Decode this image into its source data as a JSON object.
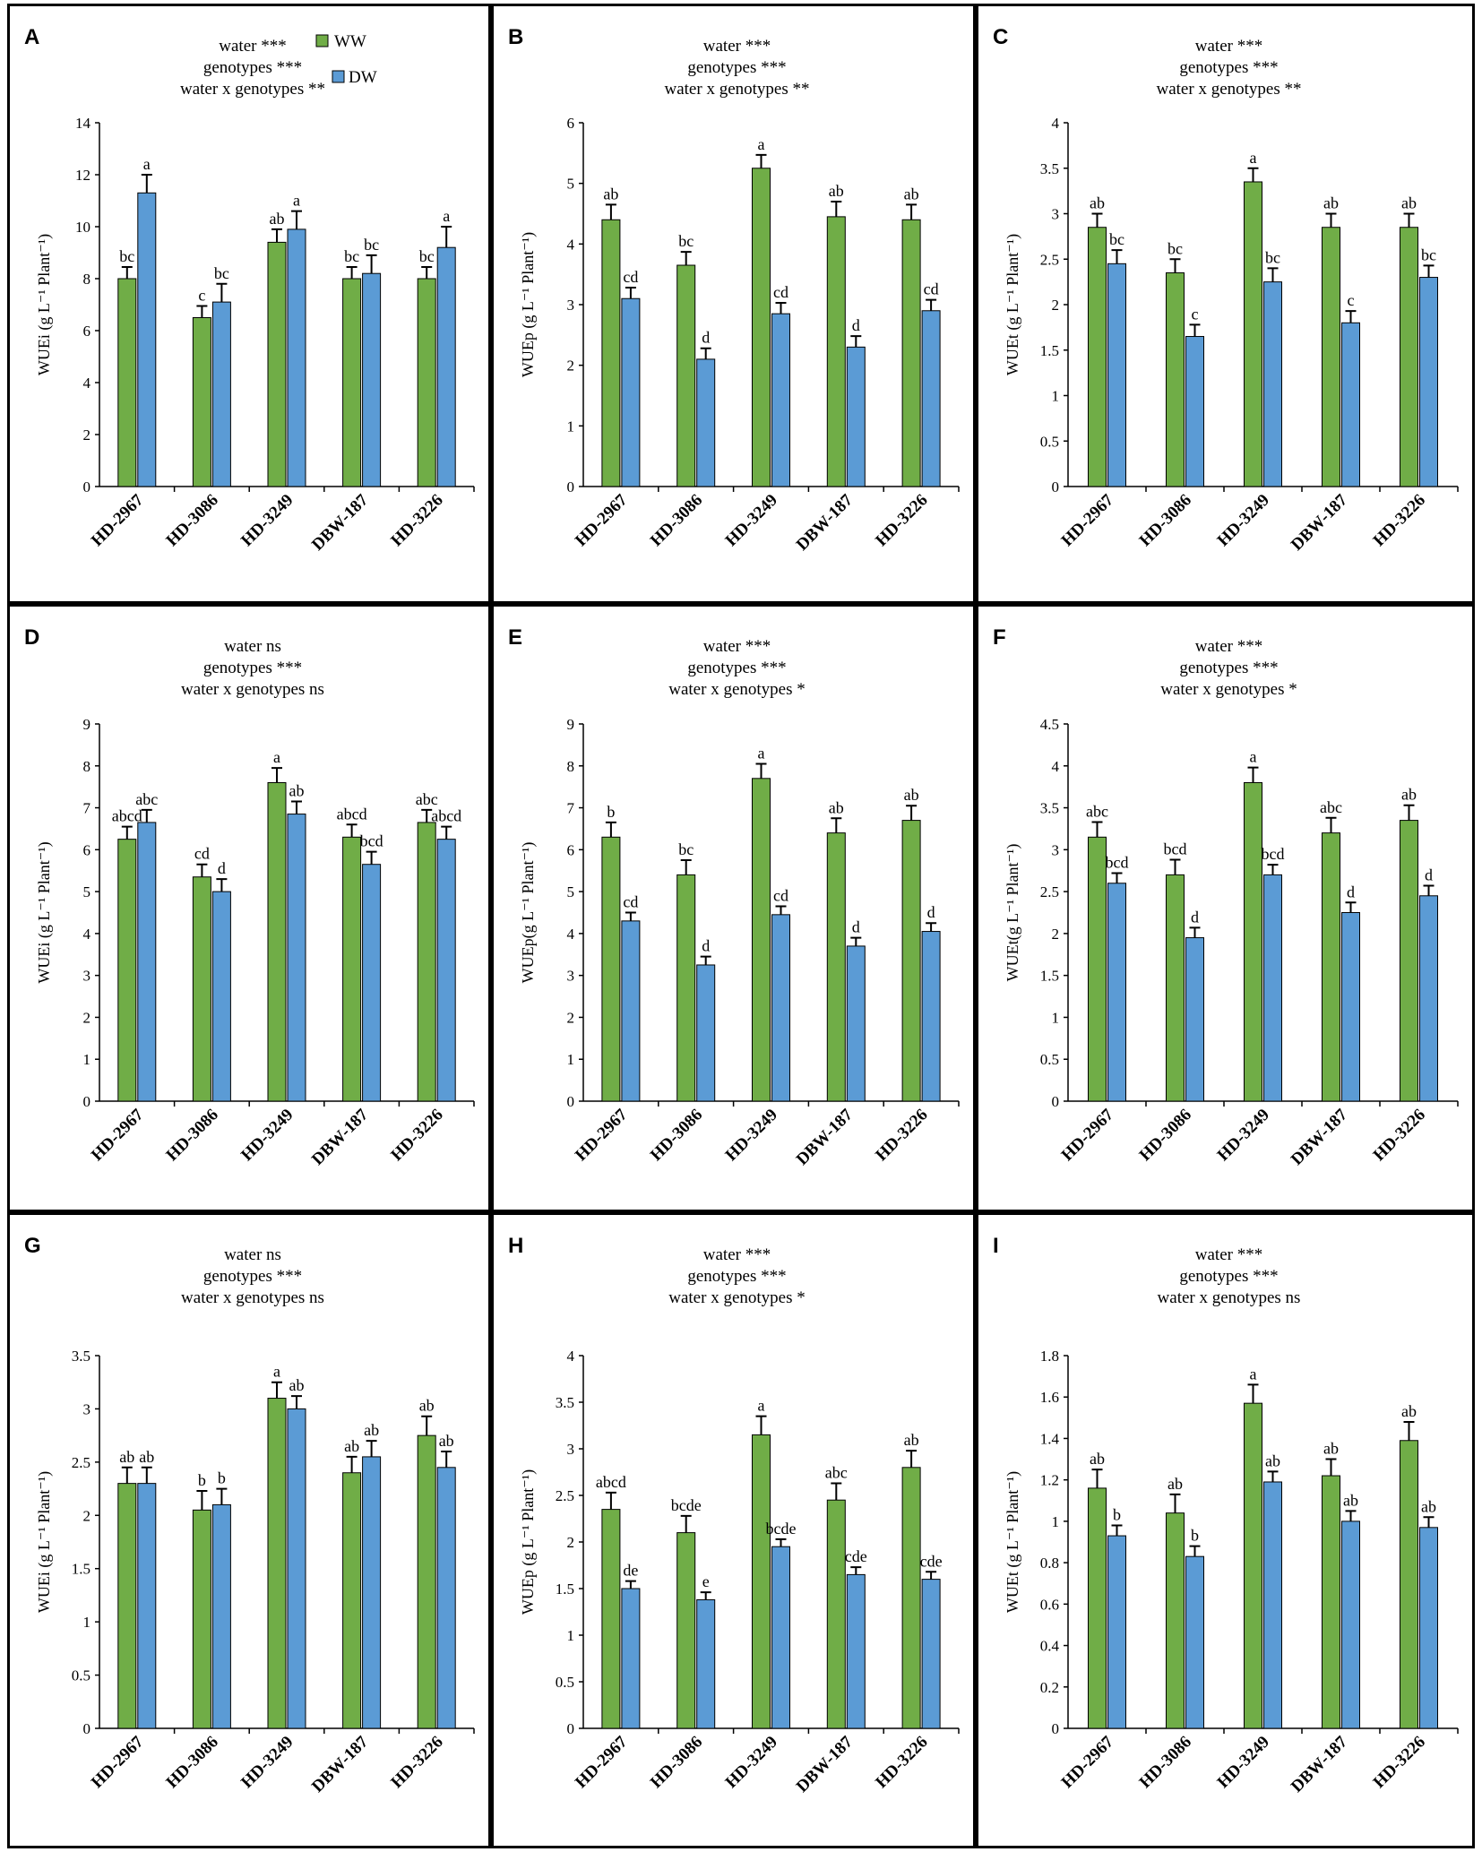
{
  "legend": {
    "ww_label": "WW",
    "dw_label": "DW",
    "ww_color": "#70ad47",
    "dw_color": "#5b9bd5"
  },
  "chart_data": [
    {
      "type": "bar",
      "panel": "A",
      "stats": [
        "water ***",
        "genotypes ***",
        "water x genotypes **"
      ],
      "ylabel": "WUEi (g L⁻¹ Plant⁻¹)",
      "ylim": [
        0,
        14
      ],
      "yticks": [
        0,
        2,
        4,
        6,
        8,
        10,
        12,
        14
      ],
      "categories": [
        "HD-2967",
        "HD-3086",
        "HD-3249",
        "DBW-187",
        "HD-3226"
      ],
      "series": [
        {
          "name": "WW",
          "values": [
            8.0,
            6.5,
            9.4,
            8.0,
            8.0
          ],
          "errors": [
            0.45,
            0.45,
            0.5,
            0.45,
            0.45
          ],
          "labels": [
            "bc",
            "c",
            "ab",
            "bc",
            "bc"
          ]
        },
        {
          "name": "DW",
          "values": [
            11.3,
            7.1,
            9.9,
            8.2,
            9.2
          ],
          "errors": [
            0.7,
            0.7,
            0.7,
            0.7,
            0.8
          ],
          "labels": [
            "a",
            "bc",
            "a",
            "bc",
            "a"
          ]
        }
      ]
    },
    {
      "type": "bar",
      "panel": "B",
      "stats": [
        "water ***",
        "genotypes ***",
        "water x genotypes **"
      ],
      "ylabel": "WUEp (g L⁻¹ Plant⁻¹)",
      "ylim": [
        0,
        6
      ],
      "yticks": [
        0,
        1,
        2,
        3,
        4,
        5,
        6
      ],
      "categories": [
        "HD-2967",
        "HD-3086",
        "HD-3249",
        "DBW-187",
        "HD-3226"
      ],
      "series": [
        {
          "name": "WW",
          "values": [
            4.4,
            3.65,
            5.25,
            4.45,
            4.4
          ],
          "errors": [
            0.25,
            0.22,
            0.22,
            0.25,
            0.25
          ],
          "labels": [
            "ab",
            "bc",
            "a",
            "ab",
            "ab"
          ]
        },
        {
          "name": "DW",
          "values": [
            3.1,
            2.1,
            2.85,
            2.3,
            2.9
          ],
          "errors": [
            0.18,
            0.18,
            0.18,
            0.18,
            0.18
          ],
          "labels": [
            "cd",
            "d",
            "cd",
            "d",
            "cd"
          ]
        }
      ]
    },
    {
      "type": "bar",
      "panel": "C",
      "stats": [
        "water ***",
        "genotypes ***",
        "water x genotypes **"
      ],
      "ylabel": "WUEt (g L⁻¹ Plant⁻¹)",
      "ylim": [
        0,
        4
      ],
      "yticks": [
        0,
        0.5,
        1,
        1.5,
        2,
        2.5,
        3,
        3.5,
        4
      ],
      "categories": [
        "HD-2967",
        "HD-3086",
        "HD-3249",
        "DBW-187",
        "HD-3226"
      ],
      "series": [
        {
          "name": "WW",
          "values": [
            2.85,
            2.35,
            3.35,
            2.85,
            2.85
          ],
          "errors": [
            0.15,
            0.15,
            0.15,
            0.15,
            0.15
          ],
          "labels": [
            "ab",
            "bc",
            "a",
            "ab",
            "ab"
          ]
        },
        {
          "name": "DW",
          "values": [
            2.45,
            1.65,
            2.25,
            1.8,
            2.3
          ],
          "errors": [
            0.15,
            0.13,
            0.15,
            0.13,
            0.13
          ],
          "labels": [
            "bc",
            "c",
            "bc",
            "c",
            "bc"
          ]
        }
      ]
    },
    {
      "type": "bar",
      "panel": "D",
      "stats": [
        "water ns",
        "genotypes ***",
        "water x genotypes ns"
      ],
      "ylabel": "WUEi (g L⁻¹ Plant⁻¹)",
      "ylim": [
        0,
        9
      ],
      "yticks": [
        0,
        1,
        2,
        3,
        4,
        5,
        6,
        7,
        8,
        9
      ],
      "categories": [
        "HD-2967",
        "HD-3086",
        "HD-3249",
        "DBW-187",
        "HD-3226"
      ],
      "series": [
        {
          "name": "WW",
          "values": [
            6.25,
            5.35,
            7.6,
            6.3,
            6.65
          ],
          "errors": [
            0.3,
            0.3,
            0.35,
            0.3,
            0.3
          ],
          "labels": [
            "abcd",
            "cd",
            "a",
            "abcd",
            "abc"
          ]
        },
        {
          "name": "DW",
          "values": [
            6.65,
            5.0,
            6.85,
            5.65,
            6.25
          ],
          "errors": [
            0.3,
            0.3,
            0.3,
            0.3,
            0.3
          ],
          "labels": [
            "abc",
            "d",
            "ab",
            "bcd",
            "abcd"
          ]
        }
      ]
    },
    {
      "type": "bar",
      "panel": "E",
      "stats": [
        "water ***",
        "genotypes ***",
        "water x genotypes *"
      ],
      "ylabel": "WUEp(g L⁻¹ Plant⁻¹)",
      "ylim": [
        0,
        9
      ],
      "yticks": [
        0,
        1,
        2,
        3,
        4,
        5,
        6,
        7,
        8,
        9
      ],
      "categories": [
        "HD-2967",
        "HD-3086",
        "HD-3249",
        "DBW-187",
        "HD-3226"
      ],
      "series": [
        {
          "name": "WW",
          "values": [
            6.3,
            5.4,
            7.7,
            6.4,
            6.7
          ],
          "errors": [
            0.35,
            0.35,
            0.35,
            0.35,
            0.35
          ],
          "labels": [
            "b",
            "bc",
            "a",
            "ab",
            "ab"
          ]
        },
        {
          "name": "DW",
          "values": [
            4.3,
            3.25,
            4.45,
            3.7,
            4.05
          ],
          "errors": [
            0.2,
            0.2,
            0.2,
            0.2,
            0.2
          ],
          "labels": [
            "cd",
            "d",
            "cd",
            "d",
            "d"
          ]
        }
      ]
    },
    {
      "type": "bar",
      "panel": "F",
      "stats": [
        "water ***",
        "genotypes ***",
        "water x genotypes *"
      ],
      "ylabel": "WUEt(g L⁻¹ Plant⁻¹)",
      "ylim": [
        0,
        4.5
      ],
      "yticks": [
        0,
        0.5,
        1,
        1.5,
        2,
        2.5,
        3,
        3.5,
        4,
        4.5
      ],
      "categories": [
        "HD-2967",
        "HD-3086",
        "HD-3249",
        "DBW-187",
        "HD-3226"
      ],
      "series": [
        {
          "name": "WW",
          "values": [
            3.15,
            2.7,
            3.8,
            3.2,
            3.35
          ],
          "errors": [
            0.18,
            0.18,
            0.18,
            0.18,
            0.18
          ],
          "labels": [
            "abc",
            "bcd",
            "a",
            "abc",
            "ab"
          ]
        },
        {
          "name": "DW",
          "values": [
            2.6,
            1.95,
            2.7,
            2.25,
            2.45
          ],
          "errors": [
            0.12,
            0.12,
            0.12,
            0.12,
            0.12
          ],
          "labels": [
            "bcd",
            "d",
            "bcd",
            "d",
            "d"
          ]
        }
      ]
    },
    {
      "type": "bar",
      "panel": "G",
      "stats": [
        "water ns",
        "genotypes ***",
        "water x genotypes ns"
      ],
      "ylabel": "WUEi (g L⁻¹ Plant⁻¹)",
      "ylim": [
        0,
        3.5
      ],
      "yticks": [
        0,
        0.5,
        1,
        1.5,
        2,
        2.5,
        3,
        3.5
      ],
      "categories": [
        "HD-2967",
        "HD-3086",
        "HD-3249",
        "DBW-187",
        "HD-3226"
      ],
      "series": [
        {
          "name": "WW",
          "values": [
            2.3,
            2.05,
            3.1,
            2.4,
            2.75
          ],
          "errors": [
            0.15,
            0.18,
            0.15,
            0.15,
            0.18
          ],
          "labels": [
            "ab",
            "b",
            "a",
            "ab",
            "ab"
          ]
        },
        {
          "name": "DW",
          "values": [
            2.3,
            2.1,
            3.0,
            2.55,
            2.45
          ],
          "errors": [
            0.15,
            0.15,
            0.12,
            0.15,
            0.15
          ],
          "labels": [
            "ab",
            "b",
            "ab",
            "ab",
            "ab"
          ]
        }
      ]
    },
    {
      "type": "bar",
      "panel": "H",
      "stats": [
        "water ***",
        "genotypes ***",
        "water x genotypes *"
      ],
      "ylabel": "WUEp (g L⁻¹ Plant⁻¹)",
      "ylim": [
        0,
        4
      ],
      "yticks": [
        0,
        0.5,
        1,
        1.5,
        2,
        2.5,
        3,
        3.5,
        4
      ],
      "categories": [
        "HD-2967",
        "HD-3086",
        "HD-3249",
        "DBW-187",
        "HD-3226"
      ],
      "series": [
        {
          "name": "WW",
          "values": [
            2.35,
            2.1,
            3.15,
            2.45,
            2.8
          ],
          "errors": [
            0.18,
            0.18,
            0.2,
            0.18,
            0.18
          ],
          "labels": [
            "abcd",
            "bcde",
            "a",
            "abc",
            "ab"
          ]
        },
        {
          "name": "DW",
          "values": [
            1.5,
            1.38,
            1.95,
            1.65,
            1.6
          ],
          "errors": [
            0.08,
            0.08,
            0.08,
            0.08,
            0.08
          ],
          "labels": [
            "de",
            "e",
            "bcde",
            "cde",
            "cde"
          ]
        }
      ]
    },
    {
      "type": "bar",
      "panel": "I",
      "stats": [
        "water ***",
        "genotypes ***",
        "water x genotypes ns"
      ],
      "ylabel": "WUEt (g L⁻¹ Plant⁻¹)",
      "ylim": [
        0,
        1.8
      ],
      "yticks": [
        0,
        0.2,
        0.4,
        0.6,
        0.8,
        1,
        1.2,
        1.4,
        1.6,
        1.8
      ],
      "categories": [
        "HD-2967",
        "HD-3086",
        "HD-3249",
        "DBW-187",
        "HD-3226"
      ],
      "series": [
        {
          "name": "WW",
          "values": [
            1.16,
            1.04,
            1.57,
            1.22,
            1.39
          ],
          "errors": [
            0.09,
            0.09,
            0.09,
            0.08,
            0.09
          ],
          "labels": [
            "ab",
            "ab",
            "a",
            "ab",
            "ab"
          ]
        },
        {
          "name": "DW",
          "values": [
            0.93,
            0.83,
            1.19,
            1.0,
            0.97
          ],
          "errors": [
            0.05,
            0.05,
            0.05,
            0.05,
            0.05
          ],
          "labels": [
            "b",
            "b",
            "ab",
            "ab",
            "ab"
          ]
        }
      ]
    }
  ]
}
